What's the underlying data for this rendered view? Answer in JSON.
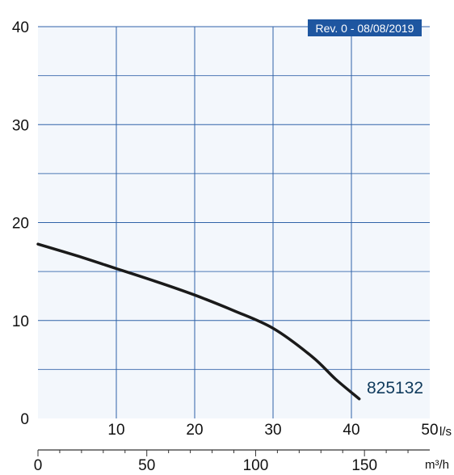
{
  "chart_data": {
    "type": "line",
    "badge": "Rev. 0 - 08/08/2019",
    "x": [
      0,
      5,
      10,
      15,
      20,
      25,
      30,
      35,
      38,
      41
    ],
    "series": [
      {
        "name": "825132",
        "values": [
          17.8,
          16.6,
          15.3,
          14.0,
          12.6,
          11.0,
          9.2,
          6.3,
          4.0,
          2.0
        ]
      }
    ],
    "xlim": [
      0,
      50
    ],
    "ylim": [
      0,
      40
    ],
    "x_ticks": [
      10,
      20,
      30,
      40,
      50
    ],
    "y_ticks": [
      0,
      10,
      20,
      30,
      40
    ],
    "x_unit": "l/s",
    "x2_ticks": [
      0,
      50,
      100,
      150
    ],
    "x2_unit": "m³/h",
    "grid": true,
    "colors": {
      "plot_bg": "#f3f7fc",
      "grid": "#2f62a8",
      "curve": "#1a1a1a",
      "badge_bg": "#1e56a0",
      "badge_text": "#ffffff",
      "series_label": "#0f3a5c",
      "text": "#111111"
    }
  }
}
